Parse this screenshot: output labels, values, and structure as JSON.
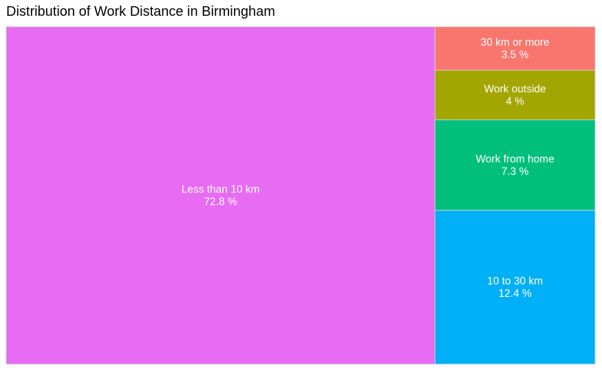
{
  "chart_data": {
    "type": "treemap",
    "title": "Distribution of Work Distance in Birmingham",
    "unit_suffix": " %",
    "items": [
      {
        "label": "Less than 10 km",
        "value": 72.8,
        "color": "#E76BF3"
      },
      {
        "label": "30 km or more",
        "value": 3.5,
        "color": "#F8766D"
      },
      {
        "label": "Work outside",
        "value": 4,
        "color": "#A3A500"
      },
      {
        "label": "Work from home",
        "value": 7.3,
        "color": "#00BF7D"
      },
      {
        "label": "10 to 30 km",
        "value": 12.4,
        "color": "#00B0F6"
      }
    ]
  }
}
